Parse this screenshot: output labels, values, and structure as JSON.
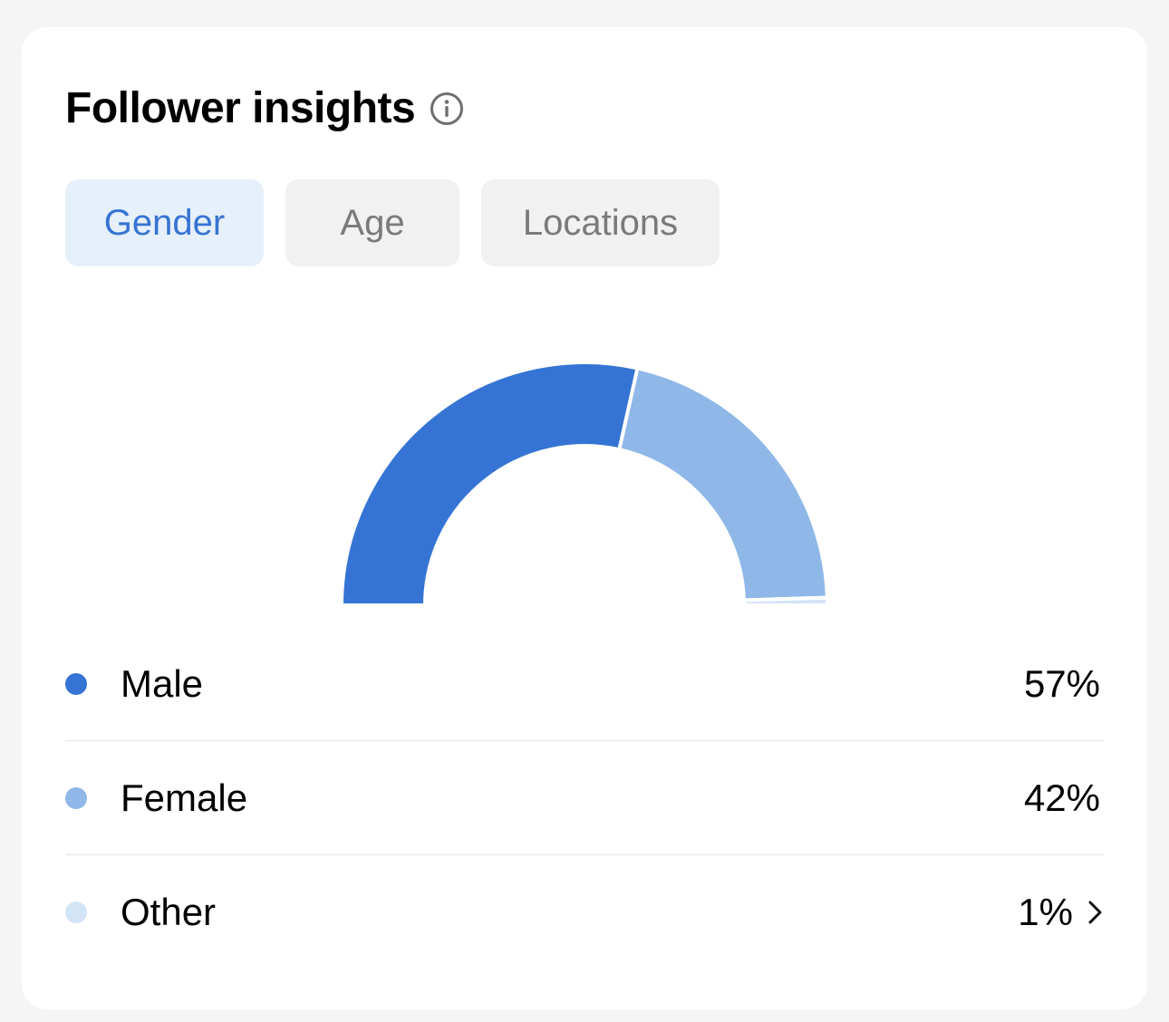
{
  "header": {
    "title": "Follower insights",
    "info_icon": "info-icon"
  },
  "tabs": [
    {
      "label": "Gender",
      "active": true
    },
    {
      "label": "Age",
      "active": false
    },
    {
      "label": "Locations",
      "active": false
    }
  ],
  "colors": {
    "male": "#3574d4",
    "female": "#8fb8e8",
    "other": "#d3e4f7",
    "accent": "#3674d3"
  },
  "chart_data": {
    "type": "pie",
    "variant": "half-donut",
    "categories": [
      "Male",
      "Female",
      "Other"
    ],
    "values": [
      57,
      42,
      1
    ],
    "unit": "%"
  },
  "legend": [
    {
      "label": "Male",
      "value": "57%",
      "color": "#3574d4",
      "chevron": false
    },
    {
      "label": "Female",
      "value": "42%",
      "color": "#8fb8e8",
      "chevron": false
    },
    {
      "label": "Other",
      "value": "1%",
      "color": "#d3e4f7",
      "chevron": true
    }
  ]
}
